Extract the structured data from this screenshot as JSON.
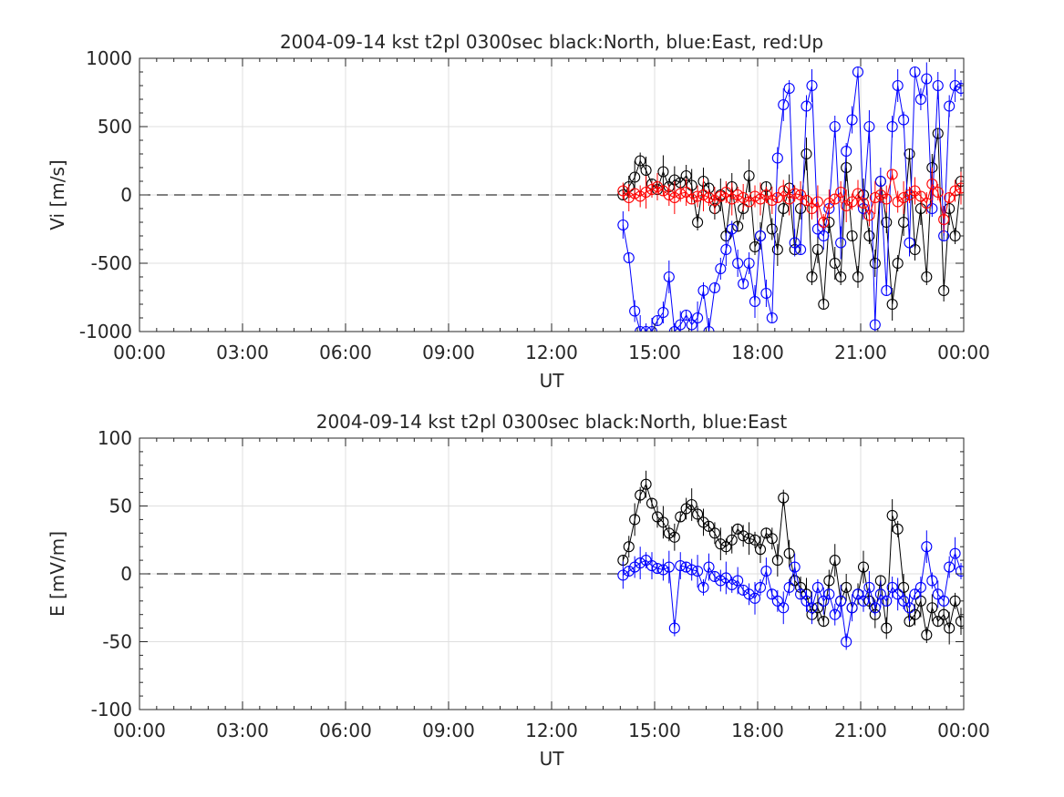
{
  "chart_data": [
    {
      "type": "scatter",
      "title": "2004-09-14 kst t2pl 0300sec black:North, blue:East, red:Up",
      "xlabel": "UT",
      "ylabel": "Vi [m/s]",
      "x_unit": "hours UT",
      "xlim": [
        0,
        24
      ],
      "ylim": [
        -1000,
        1000
      ],
      "x_ticks": [
        0,
        3,
        6,
        9,
        12,
        15,
        18,
        21,
        24
      ],
      "x_tick_labels": [
        "00:00",
        "03:00",
        "06:00",
        "09:00",
        "12:00",
        "15:00",
        "18:00",
        "21:00",
        "00:00"
      ],
      "y_ticks": [
        -1000,
        -500,
        0,
        500,
        1000
      ],
      "y_tick_labels": [
        "-1000",
        "-500",
        "0",
        "500",
        "1000"
      ],
      "grid": true,
      "zero_line": "dashed",
      "series": [
        {
          "color": "#000000",
          "x": [
            14.08,
            14.25,
            14.42,
            14.58,
            14.75,
            14.92,
            15.08,
            15.25,
            15.42,
            15.58,
            15.75,
            15.92,
            16.08,
            16.25,
            16.42,
            16.58,
            16.75,
            16.92,
            17.08,
            17.25,
            17.42,
            17.58,
            17.75,
            17.92,
            18.08,
            18.25,
            18.42,
            18.58,
            18.75,
            18.92,
            19.08,
            19.25,
            19.42,
            19.58,
            19.75,
            19.92,
            20.08,
            20.25,
            20.42,
            20.58,
            20.75,
            20.92,
            21.08,
            21.25,
            21.42,
            21.58,
            21.75,
            21.92,
            22.08,
            22.25,
            22.42,
            22.58,
            22.75,
            22.92,
            23.08,
            23.25,
            23.42,
            23.58,
            23.75,
            23.92
          ],
          "y": [
            0,
            60,
            130,
            250,
            180,
            80,
            40,
            170,
            60,
            110,
            90,
            140,
            70,
            -200,
            100,
            50,
            -100,
            0,
            -300,
            60,
            -230,
            -100,
            140,
            -380,
            -300,
            60,
            -250,
            -400,
            -100,
            50,
            -400,
            -100,
            300,
            -600,
            -400,
            -800,
            -200,
            -500,
            -600,
            200,
            -300,
            -600,
            0,
            -300,
            -500,
            100,
            -200,
            -800,
            -500,
            -200,
            300,
            -400,
            -100,
            -600,
            200,
            450,
            -700,
            -100,
            -300,
            100
          ]
        },
        {
          "color": "#0000ff",
          "x": [
            14.08,
            14.25,
            14.42,
            14.58,
            14.75,
            14.92,
            15.08,
            15.25,
            15.42,
            15.58,
            15.75,
            15.92,
            16.08,
            16.25,
            16.42,
            16.58,
            16.75,
            16.92,
            17.08,
            17.25,
            17.42,
            17.58,
            17.75,
            17.92,
            18.08,
            18.25,
            18.42,
            18.58,
            18.75,
            18.92,
            19.08,
            19.25,
            19.42,
            19.58,
            19.75,
            19.92,
            20.08,
            20.25,
            20.42,
            20.58,
            20.75,
            20.92,
            21.08,
            21.25,
            21.42,
            21.58,
            21.75,
            21.92,
            22.08,
            22.25,
            22.42,
            22.58,
            22.75,
            22.92,
            23.08,
            23.25,
            23.42,
            23.58,
            23.75,
            23.92
          ],
          "y": [
            -220,
            -460,
            -850,
            -1000,
            -1000,
            -1000,
            -920,
            -860,
            -600,
            -1000,
            -950,
            -880,
            -950,
            -900,
            -700,
            -1000,
            -680,
            -540,
            -400,
            -250,
            -500,
            -650,
            -500,
            -780,
            -300,
            -720,
            -900,
            270,
            660,
            780,
            -350,
            -400,
            650,
            800,
            -250,
            -300,
            -100,
            500,
            -350,
            320,
            550,
            900,
            -100,
            500,
            -950,
            100,
            -700,
            500,
            800,
            550,
            -350,
            900,
            700,
            850,
            -100,
            800,
            -300,
            650,
            800,
            780
          ]
        },
        {
          "color": "#ff0000",
          "x": [
            14.08,
            14.25,
            14.42,
            14.58,
            14.75,
            14.92,
            15.08,
            15.25,
            15.42,
            15.58,
            15.75,
            15.92,
            16.08,
            16.25,
            16.42,
            16.58,
            16.75,
            16.92,
            17.08,
            17.25,
            17.42,
            17.58,
            17.75,
            17.92,
            18.08,
            18.25,
            18.42,
            18.58,
            18.75,
            18.92,
            19.08,
            19.25,
            19.42,
            19.58,
            19.75,
            19.92,
            20.08,
            20.25,
            20.42,
            20.58,
            20.75,
            20.92,
            21.08,
            21.25,
            21.42,
            21.58,
            21.75,
            21.92,
            22.08,
            22.25,
            22.42,
            22.58,
            22.75,
            22.92,
            23.08,
            23.25,
            23.42,
            23.58,
            23.75,
            23.92
          ],
          "y": [
            30,
            -20,
            10,
            -10,
            20,
            40,
            60,
            30,
            0,
            -20,
            10,
            20,
            -30,
            -10,
            0,
            -20,
            -40,
            -10,
            20,
            -30,
            0,
            -20,
            -50,
            -10,
            -30,
            0,
            -40,
            -20,
            30,
            -30,
            10,
            0,
            -40,
            -100,
            -50,
            -200,
            -60,
            -30,
            20,
            -80,
            -50,
            10,
            -60,
            -150,
            -20,
            0,
            -30,
            150,
            -50,
            -20,
            0,
            30,
            -10,
            -60,
            80,
            20,
            -180,
            -20,
            30,
            50
          ]
        }
      ]
    },
    {
      "type": "scatter",
      "title": "2004-09-14 kst t2pl 0300sec black:North, blue:East",
      "xlabel": "UT",
      "ylabel": "E [mV/m]",
      "x_unit": "hours UT",
      "xlim": [
        0,
        24
      ],
      "ylim": [
        -100,
        100
      ],
      "x_ticks": [
        0,
        3,
        6,
        9,
        12,
        15,
        18,
        21,
        24
      ],
      "x_tick_labels": [
        "00:00",
        "03:00",
        "06:00",
        "09:00",
        "12:00",
        "15:00",
        "18:00",
        "21:00",
        "00:00"
      ],
      "y_ticks": [
        -100,
        -50,
        0,
        50,
        100
      ],
      "y_tick_labels": [
        "-100",
        "-50",
        "0",
        "50",
        "100"
      ],
      "grid": true,
      "zero_line": "dashed",
      "series": [
        {
          "color": "#000000",
          "x": [
            14.08,
            14.25,
            14.42,
            14.58,
            14.75,
            14.92,
            15.08,
            15.25,
            15.42,
            15.58,
            15.75,
            15.92,
            16.08,
            16.25,
            16.42,
            16.58,
            16.75,
            16.92,
            17.08,
            17.25,
            17.42,
            17.58,
            17.75,
            17.92,
            18.08,
            18.25,
            18.42,
            18.58,
            18.75,
            18.92,
            19.08,
            19.25,
            19.42,
            19.58,
            19.75,
            19.92,
            20.08,
            20.25,
            20.42,
            20.58,
            20.75,
            20.92,
            21.08,
            21.25,
            21.42,
            21.58,
            21.75,
            21.92,
            22.08,
            22.25,
            22.42,
            22.58,
            22.75,
            22.92,
            23.08,
            23.25,
            23.42,
            23.58,
            23.75,
            23.92
          ],
          "y": [
            10,
            20,
            40,
            58,
            66,
            52,
            42,
            38,
            30,
            27,
            42,
            48,
            51,
            44,
            38,
            35,
            30,
            22,
            20,
            25,
            33,
            28,
            26,
            25,
            18,
            30,
            26,
            10,
            56,
            15,
            -5,
            -10,
            -15,
            -30,
            -25,
            -35,
            -5,
            10,
            -20,
            -10,
            -25,
            -15,
            5,
            -20,
            -30,
            -5,
            -40,
            43,
            33,
            -10,
            -35,
            -30,
            -20,
            -45,
            -25,
            -35,
            -30,
            -40,
            -20,
            -35
          ]
        },
        {
          "color": "#0000ff",
          "x": [
            14.08,
            14.25,
            14.42,
            14.58,
            14.75,
            14.92,
            15.08,
            15.25,
            15.42,
            15.58,
            15.75,
            15.92,
            16.08,
            16.25,
            16.42,
            16.58,
            16.75,
            16.92,
            17.08,
            17.25,
            17.42,
            17.58,
            17.75,
            17.92,
            18.08,
            18.25,
            18.42,
            18.58,
            18.75,
            18.92,
            19.08,
            19.25,
            19.42,
            19.58,
            19.75,
            19.92,
            20.08,
            20.25,
            20.42,
            20.58,
            20.75,
            20.92,
            21.08,
            21.25,
            21.42,
            21.58,
            21.75,
            21.92,
            22.08,
            22.25,
            22.42,
            22.58,
            22.75,
            22.92,
            23.08,
            23.25,
            23.42,
            23.58,
            23.75,
            23.92
          ],
          "y": [
            -1,
            2,
            5,
            8,
            10,
            6,
            4,
            3,
            5,
            -40,
            6,
            5,
            3,
            2,
            -10,
            5,
            -2,
            -5,
            -3,
            -8,
            -5,
            -12,
            -15,
            -18,
            -10,
            2,
            -15,
            -20,
            -25,
            -10,
            5,
            -15,
            -20,
            -25,
            -10,
            -20,
            -15,
            -30,
            -20,
            -50,
            -25,
            -15,
            -20,
            -10,
            -25,
            -15,
            -20,
            -10,
            -15,
            -20,
            -25,
            -15,
            -10,
            20,
            -5,
            -15,
            -20,
            5,
            15,
            2
          ]
        }
      ]
    }
  ]
}
